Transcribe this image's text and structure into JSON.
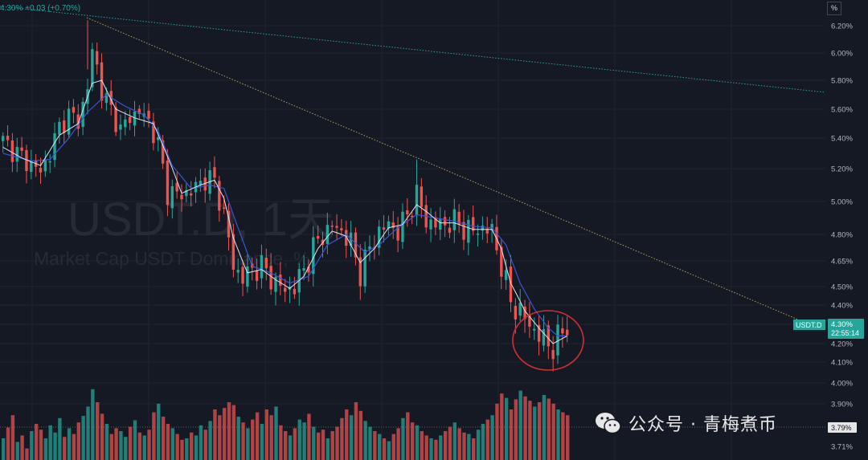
{
  "header": {
    "value_text": "4.30%  +0.03 (+0.70%)"
  },
  "watermark": {
    "symbol": "USDT.D, 1天",
    "name": "Market Cap USDT Dominance, %"
  },
  "price_axis": {
    "unit_label": "%"
  },
  "last_price": {
    "symbol": "USDT.D",
    "value": "4.30%",
    "countdown": "22:55:14"
  },
  "volume_tag": "3.79%",
  "wechat_label": "公众号 · 青梅煮币",
  "colors": {
    "background": "#151924",
    "up": "#26a69a",
    "down": "#ef5350",
    "ma_fast": "#e0e3eb",
    "ma_slow": "#3656d6",
    "trend_down": "#b3a55a",
    "trend_top": "#26a69a",
    "circle": "#d32f2f"
  },
  "chart_data": {
    "type": "candlestick",
    "title": "USDT.D, 1天",
    "subtitle": "Market Cap USDT Dominance, %",
    "ylim": [
      4.01,
      6.25
    ],
    "y_ticks": [
      6.2,
      6.0,
      5.8,
      5.6,
      5.4,
      5.2,
      5.0,
      4.8,
      4.65,
      4.5,
      4.4,
      4.3,
      4.2,
      4.1,
      4.0
    ],
    "volume_axis_ticks": [
      "3.90%",
      "3.80%",
      "3.71%"
    ],
    "last_value": 4.3,
    "change": "+0.03 (+0.70%)",
    "waypoints": [
      [
        0,
        5.38
      ],
      [
        3,
        5.3
      ],
      [
        5,
        5.25
      ],
      [
        8,
        5.18
      ],
      [
        10,
        5.3
      ],
      [
        12,
        5.48
      ],
      [
        14,
        5.56
      ],
      [
        16,
        5.52
      ],
      [
        18,
        5.74
      ],
      [
        19,
        6.02
      ],
      [
        20,
        5.9
      ],
      [
        21,
        5.72
      ],
      [
        23,
        5.6
      ],
      [
        25,
        5.45
      ],
      [
        27,
        5.55
      ],
      [
        29,
        5.58
      ],
      [
        31,
        5.52
      ],
      [
        33,
        5.35
      ],
      [
        35,
        5.06
      ],
      [
        37,
        5.04
      ],
      [
        40,
        5.06
      ],
      [
        43,
        5.14
      ],
      [
        45,
        5.12
      ],
      [
        47,
        4.92
      ],
      [
        49,
        4.62
      ],
      [
        51,
        4.55
      ],
      [
        53,
        4.6
      ],
      [
        55,
        4.62
      ],
      [
        58,
        4.52
      ],
      [
        60,
        4.48
      ],
      [
        62,
        4.5
      ],
      [
        64,
        4.6
      ],
      [
        66,
        4.72
      ],
      [
        68,
        4.8
      ],
      [
        70,
        4.85
      ],
      [
        72,
        4.82
      ],
      [
        74,
        4.75
      ],
      [
        76,
        4.58
      ],
      [
        78,
        4.72
      ],
      [
        80,
        4.82
      ],
      [
        82,
        4.86
      ],
      [
        84,
        4.82
      ],
      [
        86,
        4.92
      ],
      [
        88,
        5.04
      ],
      [
        90,
        4.88
      ],
      [
        92,
        4.86
      ],
      [
        94,
        4.86
      ],
      [
        96,
        4.88
      ],
      [
        98,
        4.84
      ],
      [
        100,
        4.82
      ],
      [
        102,
        4.84
      ],
      [
        104,
        4.82
      ],
      [
        106,
        4.62
      ],
      [
        108,
        4.42
      ],
      [
        110,
        4.36
      ],
      [
        112,
        4.3
      ],
      [
        114,
        4.24
      ],
      [
        116,
        4.2
      ],
      [
        117,
        4.18
      ],
      [
        118,
        4.22
      ],
      [
        119,
        4.26
      ],
      [
        120,
        4.3
      ]
    ],
    "ma_fast": [
      [
        0,
        5.34
      ],
      [
        4,
        5.27
      ],
      [
        8,
        5.22
      ],
      [
        12,
        5.42
      ],
      [
        16,
        5.5
      ],
      [
        19,
        5.78
      ],
      [
        21,
        5.8
      ],
      [
        24,
        5.6
      ],
      [
        28,
        5.54
      ],
      [
        32,
        5.5
      ],
      [
        35,
        5.28
      ],
      [
        38,
        5.05
      ],
      [
        42,
        5.1
      ],
      [
        45,
        5.13
      ],
      [
        47,
        5.02
      ],
      [
        49,
        4.78
      ],
      [
        52,
        4.58
      ],
      [
        55,
        4.6
      ],
      [
        58,
        4.54
      ],
      [
        61,
        4.49
      ],
      [
        64,
        4.56
      ],
      [
        67,
        4.72
      ],
      [
        70,
        4.82
      ],
      [
        73,
        4.79
      ],
      [
        76,
        4.64
      ],
      [
        79,
        4.72
      ],
      [
        82,
        4.84
      ],
      [
        85,
        4.86
      ],
      [
        88,
        4.98
      ],
      [
        90,
        4.94
      ],
      [
        93,
        4.87
      ],
      [
        96,
        4.87
      ],
      [
        100,
        4.83
      ],
      [
        104,
        4.83
      ],
      [
        106,
        4.72
      ],
      [
        108,
        4.52
      ],
      [
        111,
        4.37
      ],
      [
        114,
        4.28
      ],
      [
        117,
        4.2
      ],
      [
        120,
        4.24
      ]
    ],
    "ma_slow": [
      [
        0,
        5.3
      ],
      [
        6,
        5.25
      ],
      [
        10,
        5.26
      ],
      [
        14,
        5.4
      ],
      [
        18,
        5.58
      ],
      [
        22,
        5.7
      ],
      [
        26,
        5.62
      ],
      [
        30,
        5.56
      ],
      [
        33,
        5.45
      ],
      [
        36,
        5.22
      ],
      [
        40,
        5.08
      ],
      [
        44,
        5.1
      ],
      [
        47,
        5.08
      ],
      [
        50,
        4.84
      ],
      [
        53,
        4.62
      ],
      [
        57,
        4.58
      ],
      [
        61,
        4.52
      ],
      [
        65,
        4.56
      ],
      [
        69,
        4.74
      ],
      [
        73,
        4.8
      ],
      [
        77,
        4.7
      ],
      [
        80,
        4.74
      ],
      [
        84,
        4.84
      ],
      [
        88,
        4.92
      ],
      [
        92,
        4.9
      ],
      [
        96,
        4.88
      ],
      [
        100,
        4.85
      ],
      [
        104,
        4.84
      ],
      [
        107,
        4.74
      ],
      [
        110,
        4.52
      ],
      [
        113,
        4.38
      ],
      [
        116,
        4.28
      ],
      [
        118,
        4.24
      ],
      [
        120,
        4.24
      ]
    ],
    "volume_heights": [
      0.3,
      0.45,
      0.62,
      0.25,
      0.34,
      0.16,
      0.4,
      0.5,
      0.42,
      0.3,
      0.48,
      0.38,
      0.58,
      0.32,
      0.44,
      0.36,
      0.52,
      0.61,
      0.74,
      0.98,
      0.8,
      0.64,
      0.5,
      0.36,
      0.44,
      0.4,
      0.32,
      0.46,
      0.55,
      0.38,
      0.34,
      0.42,
      0.66,
      0.78,
      0.6,
      0.5,
      0.44,
      0.36,
      0.28,
      0.3,
      0.38,
      0.34,
      0.48,
      0.42,
      0.54,
      0.7,
      0.62,
      0.72,
      0.8,
      0.76,
      0.6,
      0.52,
      0.44,
      0.56,
      0.66,
      0.5,
      0.7,
      0.62,
      0.74,
      0.48,
      0.4,
      0.34,
      0.44,
      0.56,
      0.52,
      0.64,
      0.46,
      0.38,
      0.42,
      0.3,
      0.4,
      0.46,
      0.58,
      0.7,
      0.62,
      0.8,
      0.68,
      0.54,
      0.46,
      0.4,
      0.36,
      0.3,
      0.26,
      0.36,
      0.44,
      0.58,
      0.66,
      0.52,
      0.48,
      0.4,
      0.34,
      0.3,
      0.28,
      0.34,
      0.4,
      0.46,
      0.52,
      0.44,
      0.38,
      0.36,
      0.3,
      0.42,
      0.5,
      0.56,
      0.62,
      0.78,
      0.92,
      0.86,
      0.7,
      0.84,
      0.96,
      0.88,
      0.82,
      0.74,
      0.8,
      0.9,
      0.85,
      0.78,
      0.7,
      0.66,
      0.62
    ],
    "annotations": [
      {
        "type": "circle",
        "around_x": [
          116,
          118
        ]
      }
    ]
  }
}
